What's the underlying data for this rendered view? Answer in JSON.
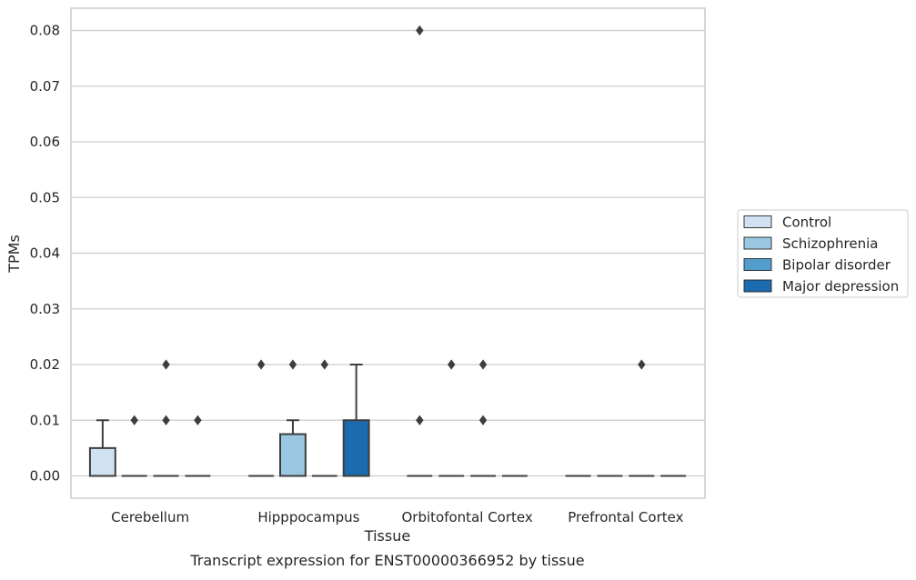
{
  "chart_data": {
    "type": "box",
    "xlabel": "Tissue",
    "ylabel": "TPMs",
    "caption": "Transcript expression for ENST00000366952 by tissue",
    "ylim": [
      -0.004,
      0.084
    ],
    "yticks": [
      0.0,
      0.01,
      0.02,
      0.03,
      0.04,
      0.05,
      0.06,
      0.07,
      0.08
    ],
    "ytick_labels": [
      "0.00",
      "0.01",
      "0.02",
      "0.03",
      "0.04",
      "0.05",
      "0.06",
      "0.07",
      "0.08"
    ],
    "grid": "horizontal",
    "legend_position": "right",
    "categories": [
      "Cerebellum",
      "Hipppocampus",
      "Orbitofontal Cortex",
      "Prefrontal Cortex"
    ],
    "series": [
      {
        "name": "Control",
        "color": "#d0e2f2",
        "boxes": [
          {
            "q1": 0.0,
            "median": 0.0,
            "q3": 0.005,
            "whisker_low": 0.0,
            "whisker_high": 0.01,
            "outliers": []
          },
          {
            "q1": 0.0,
            "median": 0.0,
            "q3": 0.0,
            "whisker_low": 0.0,
            "whisker_high": 0.0,
            "outliers": [
              0.02
            ]
          },
          {
            "q1": 0.0,
            "median": 0.0,
            "q3": 0.0,
            "whisker_low": 0.0,
            "whisker_high": 0.0,
            "outliers": [
              0.01,
              0.08
            ]
          },
          {
            "q1": 0.0,
            "median": 0.0,
            "q3": 0.0,
            "whisker_low": 0.0,
            "whisker_high": 0.0,
            "outliers": []
          }
        ]
      },
      {
        "name": "Schizophrenia",
        "color": "#9ac8e0",
        "boxes": [
          {
            "q1": 0.0,
            "median": 0.0,
            "q3": 0.0,
            "whisker_low": 0.0,
            "whisker_high": 0.0,
            "outliers": [
              0.01
            ]
          },
          {
            "q1": 0.0,
            "median": 0.0,
            "q3": 0.0075,
            "whisker_low": 0.0,
            "whisker_high": 0.01,
            "outliers": [
              0.02
            ]
          },
          {
            "q1": 0.0,
            "median": 0.0,
            "q3": 0.0,
            "whisker_low": 0.0,
            "whisker_high": 0.0,
            "outliers": [
              0.02
            ]
          },
          {
            "q1": 0.0,
            "median": 0.0,
            "q3": 0.0,
            "whisker_low": 0.0,
            "whisker_high": 0.0,
            "outliers": []
          }
        ]
      },
      {
        "name": "Bipolar disorder",
        "color": "#529dcc",
        "boxes": [
          {
            "q1": 0.0,
            "median": 0.0,
            "q3": 0.0,
            "whisker_low": 0.0,
            "whisker_high": 0.0,
            "outliers": [
              0.01,
              0.02
            ]
          },
          {
            "q1": 0.0,
            "median": 0.0,
            "q3": 0.0,
            "whisker_low": 0.0,
            "whisker_high": 0.0,
            "outliers": [
              0.02
            ]
          },
          {
            "q1": 0.0,
            "median": 0.0,
            "q3": 0.0,
            "whisker_low": 0.0,
            "whisker_high": 0.0,
            "outliers": [
              0.01,
              0.02
            ]
          },
          {
            "q1": 0.0,
            "median": 0.0,
            "q3": 0.0,
            "whisker_low": 0.0,
            "whisker_high": 0.0,
            "outliers": [
              0.02
            ]
          }
        ]
      },
      {
        "name": "Major depression",
        "color": "#1c6aaf",
        "boxes": [
          {
            "q1": 0.0,
            "median": 0.0,
            "q3": 0.0,
            "whisker_low": 0.0,
            "whisker_high": 0.0,
            "outliers": [
              0.01
            ]
          },
          {
            "q1": 0.0,
            "median": 0.0,
            "q3": 0.01,
            "whisker_low": 0.0,
            "whisker_high": 0.02,
            "outliers": []
          },
          {
            "q1": 0.0,
            "median": 0.0,
            "q3": 0.0,
            "whisker_low": 0.0,
            "whisker_high": 0.0,
            "outliers": []
          },
          {
            "q1": 0.0,
            "median": 0.0,
            "q3": 0.0,
            "whisker_low": 0.0,
            "whisker_high": 0.0,
            "outliers": []
          }
        ]
      }
    ]
  }
}
